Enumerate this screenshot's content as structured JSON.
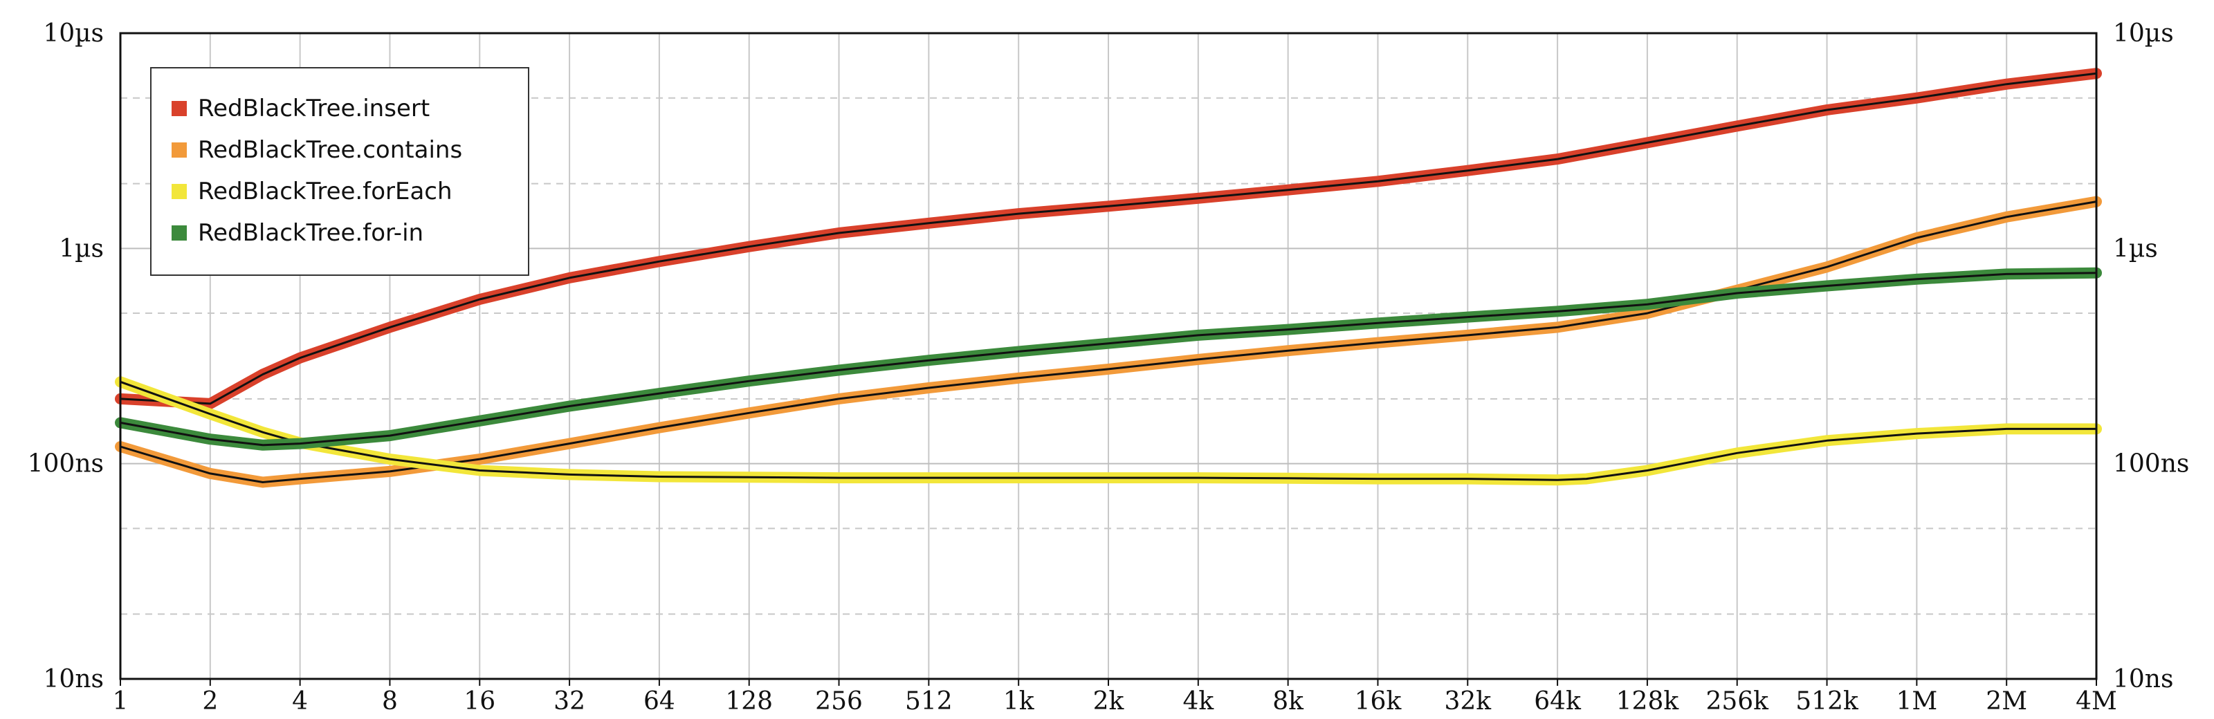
{
  "chart_data": {
    "type": "line",
    "x_scale": "log2",
    "y_scale": "log10",
    "grid": true,
    "legend_placement": "top-left",
    "x_ticks": [
      "1",
      "2",
      "4",
      "8",
      "16",
      "32",
      "64",
      "128",
      "256",
      "512",
      "1k",
      "2k",
      "4k",
      "8k",
      "16k",
      "32k",
      "64k",
      "128k",
      "256k",
      "512k",
      "1M",
      "2M",
      "4M"
    ],
    "y_ticks": [
      {
        "value": 1e-08,
        "label": "10ns"
      },
      {
        "value": 1e-07,
        "label": "100ns"
      },
      {
        "value": 1e-06,
        "label": "1µs"
      },
      {
        "value": 1e-05,
        "label": "10µs"
      }
    ],
    "xlim": [
      1,
      4194304
    ],
    "ylim": [
      1e-08,
      1e-05
    ],
    "series": [
      {
        "name": "RedBlackTree.insert",
        "color": "#d9412b",
        "x": [
          1,
          2,
          3,
          4,
          8,
          16,
          32,
          64,
          128,
          256,
          512,
          1024,
          2048,
          4096,
          8192,
          16384,
          32768,
          65536,
          131072,
          262144,
          524288,
          1048576,
          2097152,
          4194304
        ],
        "y": [
          2e-07,
          1.9e-07,
          2.6e-07,
          3.1e-07,
          4.3e-07,
          5.8e-07,
          7.3e-07,
          8.7e-07,
          1.02e-06,
          1.18e-06,
          1.31e-06,
          1.45e-06,
          1.57e-06,
          1.71e-06,
          1.87e-06,
          2.05e-06,
          2.3e-06,
          2.6e-06,
          3.1e-06,
          3.7e-06,
          4.4e-06,
          5e-06,
          5.8e-06,
          6.5e-06
        ]
      },
      {
        "name": "RedBlackTree.contains",
        "color": "#f29a3a",
        "x": [
          1,
          2,
          3,
          4,
          8,
          16,
          32,
          64,
          128,
          256,
          512,
          1024,
          2048,
          4096,
          8192,
          16384,
          32768,
          65536,
          131072,
          262144,
          524288,
          1048576,
          2097152,
          4194304
        ],
        "y": [
          1.2e-07,
          9e-08,
          8.2e-08,
          8.5e-08,
          9.2e-08,
          1.05e-07,
          1.24e-07,
          1.47e-07,
          1.72e-07,
          2e-07,
          2.25e-07,
          2.5e-07,
          2.75e-07,
          3.05e-07,
          3.35e-07,
          3.65e-07,
          3.95e-07,
          4.3e-07,
          5e-07,
          6.4e-07,
          8.2e-07,
          1.12e-06,
          1.4e-06,
          1.65e-06
        ]
      },
      {
        "name": "RedBlackTree.forEach",
        "color": "#f2e63a",
        "x": [
          1,
          2,
          3,
          4,
          8,
          16,
          32,
          64,
          128,
          256,
          512,
          1024,
          2048,
          4096,
          8192,
          16384,
          32768,
          65536,
          81920,
          131072,
          262144,
          524288,
          1048576,
          2097152,
          4194304
        ],
        "y": [
          2.4e-07,
          1.7e-07,
          1.4e-07,
          1.25e-07,
          1.05e-07,
          9.3e-08,
          8.9e-08,
          8.7e-08,
          8.65e-08,
          8.6e-08,
          8.6e-08,
          8.6e-08,
          8.6e-08,
          8.6e-08,
          8.55e-08,
          8.5e-08,
          8.5e-08,
          8.4e-08,
          8.5e-08,
          9.3e-08,
          1.12e-07,
          1.28e-07,
          1.38e-07,
          1.45e-07,
          1.45e-07
        ]
      },
      {
        "name": "RedBlackTree.for-in",
        "color": "#3c8a3c",
        "x": [
          1,
          2,
          3,
          4,
          8,
          16,
          32,
          64,
          128,
          256,
          512,
          1024,
          2048,
          4096,
          8192,
          16384,
          32768,
          65536,
          131072,
          262144,
          524288,
          1048576,
          2097152,
          4194304
        ],
        "y": [
          1.55e-07,
          1.3e-07,
          1.22e-07,
          1.24e-07,
          1.35e-07,
          1.58e-07,
          1.85e-07,
          2.12e-07,
          2.42e-07,
          2.72e-07,
          3.02e-07,
          3.32e-07,
          3.62e-07,
          3.95e-07,
          4.2e-07,
          4.5e-07,
          4.8e-07,
          5.1e-07,
          5.5e-07,
          6.2e-07,
          6.7e-07,
          7.2e-07,
          7.6e-07,
          7.7e-07
        ]
      }
    ]
  }
}
